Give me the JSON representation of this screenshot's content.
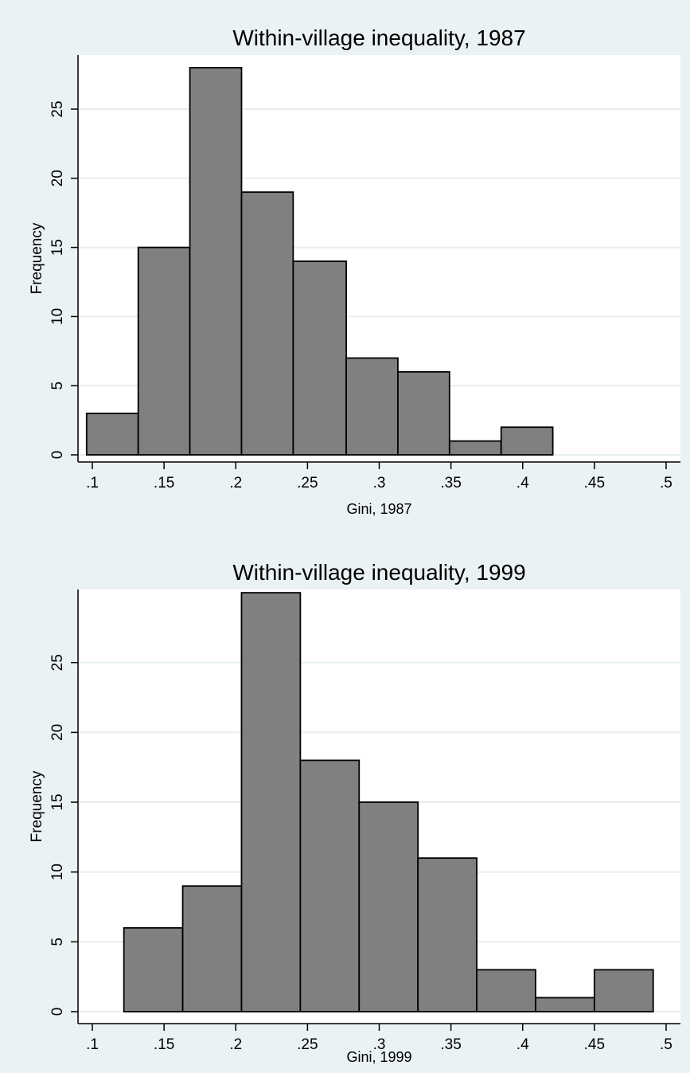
{
  "chart_data": [
    {
      "type": "bar",
      "subtype": "histogram",
      "title": "Within-village inequality, 1987",
      "xlabel": "Gini, 1987",
      "ylabel": "Frequency",
      "xlim": [
        0.09,
        0.51
      ],
      "ylim": [
        0,
        30
      ],
      "xticks": [
        ".1",
        ".15",
        ".2",
        ".25",
        ".3",
        ".35",
        ".4",
        ".45",
        ".5"
      ],
      "xtick_values": [
        0.1,
        0.15,
        0.2,
        0.25,
        0.3,
        0.35,
        0.4,
        0.45,
        0.5
      ],
      "yticks": [
        "0",
        "5",
        "10",
        "15",
        "20",
        "25"
      ],
      "ytick_values": [
        0,
        5,
        10,
        15,
        20,
        25
      ],
      "grid": "horizontal",
      "bins": [
        {
          "start": 0.096,
          "end": 0.132,
          "value": 3
        },
        {
          "start": 0.132,
          "end": 0.168,
          "value": 15
        },
        {
          "start": 0.168,
          "end": 0.204,
          "value": 28
        },
        {
          "start": 0.204,
          "end": 0.24,
          "value": 19
        },
        {
          "start": 0.24,
          "end": 0.277,
          "value": 14
        },
        {
          "start": 0.277,
          "end": 0.313,
          "value": 7
        },
        {
          "start": 0.313,
          "end": 0.349,
          "value": 6
        },
        {
          "start": 0.349,
          "end": 0.385,
          "value": 1
        },
        {
          "start": 0.385,
          "end": 0.421,
          "value": 2
        }
      ],
      "bar_color": "#808080"
    },
    {
      "type": "bar",
      "subtype": "histogram",
      "title": "Within-village inequality, 1999",
      "xlabel": "Gini, 1999",
      "ylabel": "Frequency",
      "xlim": [
        0.09,
        0.51
      ],
      "ylim": [
        0,
        30
      ],
      "xticks": [
        ".1",
        ".15",
        ".2",
        ".25",
        ".3",
        ".35",
        ".4",
        ".45",
        ".5"
      ],
      "xtick_values": [
        0.1,
        0.15,
        0.2,
        0.25,
        0.3,
        0.35,
        0.4,
        0.45,
        0.5
      ],
      "yticks": [
        "0",
        "5",
        "10",
        "15",
        "20",
        "25"
      ],
      "ytick_values": [
        0,
        5,
        10,
        15,
        20,
        25
      ],
      "grid": "horizontal",
      "bins": [
        {
          "start": 0.122,
          "end": 0.163,
          "value": 6
        },
        {
          "start": 0.163,
          "end": 0.204,
          "value": 9
        },
        {
          "start": 0.204,
          "end": 0.245,
          "value": 30
        },
        {
          "start": 0.245,
          "end": 0.286,
          "value": 18
        },
        {
          "start": 0.286,
          "end": 0.327,
          "value": 15
        },
        {
          "start": 0.327,
          "end": 0.368,
          "value": 11
        },
        {
          "start": 0.368,
          "end": 0.409,
          "value": 3
        },
        {
          "start": 0.409,
          "end": 0.45,
          "value": 1
        },
        {
          "start": 0.45,
          "end": 0.491,
          "value": 3
        }
      ],
      "bar_color": "#808080"
    }
  ],
  "colors": {
    "background": "#eaf2f3",
    "plot_area": "#ffffff",
    "gridline": "#e6eef0",
    "bar": "#808080",
    "bar_outline": "#000000"
  }
}
